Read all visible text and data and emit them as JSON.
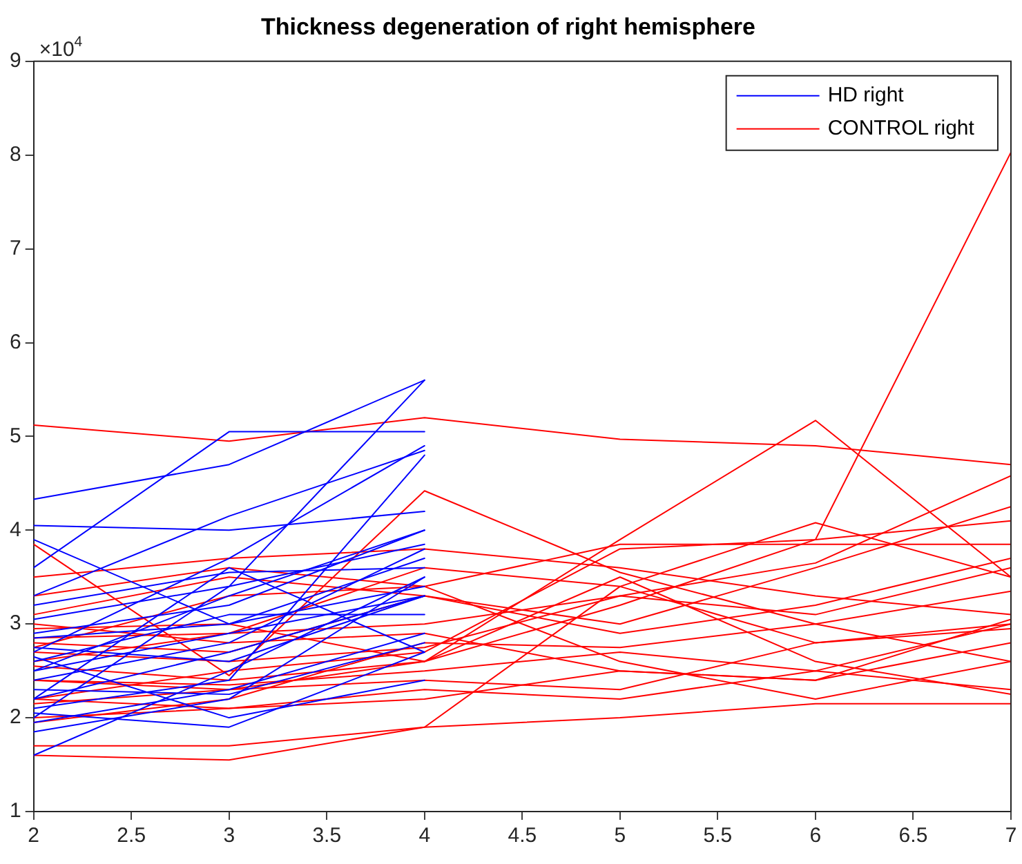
{
  "chart_data": {
    "type": "line",
    "title": "Thickness degeneration of right hemisphere",
    "annotations": [
      "×10$^{4}$"
    ],
    "x": [
      2,
      3,
      4,
      5,
      6,
      7
    ],
    "xlim": [
      2,
      7
    ],
    "xticks": [
      2,
      2.5,
      3,
      3.5,
      4,
      4.5,
      5,
      5.5,
      6,
      6.5,
      7
    ],
    "ylim": [
      1,
      9
    ],
    "yticks": [
      1,
      2,
      3,
      4,
      5,
      6,
      7,
      8,
      9
    ],
    "grid": false,
    "legend": "top right",
    "marker": "none",
    "line_style": "solid",
    "series": [
      {
        "name": "HD right",
        "color": "#0000ff",
        "x": [
          2,
          3,
          4
        ],
        "values": [
          4.33,
          4.7,
          5.6
        ]
      },
      {
        "color": "#0000ff",
        "x": [
          2,
          3,
          4
        ],
        "values": [
          4.05,
          4.0,
          4.2
        ]
      },
      {
        "color": "#0000ff",
        "x": [
          2,
          3,
          4
        ],
        "values": [
          3.6,
          5.05,
          5.05
        ]
      },
      {
        "color": "#0000ff",
        "x": [
          2,
          3,
          4
        ],
        "values": [
          3.3,
          4.15,
          4.85
        ]
      },
      {
        "color": "#0000ff",
        "x": [
          2,
          3,
          4
        ],
        "values": [
          2.0,
          3.4,
          5.6
        ]
      },
      {
        "color": "#0000ff",
        "x": [
          2,
          3,
          4
        ],
        "values": [
          2.7,
          3.7,
          4.9
        ]
      },
      {
        "color": "#0000ff",
        "x": [
          2,
          3,
          4
        ],
        "values": [
          3.2,
          3.55,
          3.6
        ]
      },
      {
        "color": "#0000ff",
        "x": [
          2,
          3,
          4
        ],
        "values": [
          2.9,
          3.2,
          4.0
        ]
      },
      {
        "color": "#0000ff",
        "x": [
          2,
          3,
          4
        ],
        "values": [
          2.5,
          3.3,
          4.0
        ]
      },
      {
        "color": "#0000ff",
        "x": [
          2,
          3,
          4
        ],
        "values": [
          2.85,
          3.0,
          3.4
        ]
      },
      {
        "color": "#0000ff",
        "x": [
          2,
          3,
          4
        ],
        "values": [
          2.4,
          2.8,
          3.8
        ]
      },
      {
        "color": "#0000ff",
        "x": [
          2,
          3,
          4
        ],
        "values": [
          2.2,
          2.7,
          3.3
        ]
      },
      {
        "color": "#0000ff",
        "x": [
          2,
          3,
          4
        ],
        "values": [
          1.6,
          2.5,
          3.5
        ]
      },
      {
        "color": "#0000ff",
        "x": [
          2,
          3,
          4
        ],
        "values": [
          2.05,
          1.9,
          2.7
        ]
      },
      {
        "color": "#0000ff",
        "x": [
          2,
          3,
          4
        ],
        "values": [
          2.6,
          3.1,
          3.1
        ]
      },
      {
        "color": "#0000ff",
        "x": [
          2,
          3,
          4
        ],
        "values": [
          2.3,
          2.25,
          2.8
        ]
      },
      {
        "color": "#0000ff",
        "x": [
          2,
          3,
          4
        ],
        "values": [
          1.85,
          2.2,
          3.5
        ]
      },
      {
        "color": "#0000ff",
        "x": [
          2,
          3,
          4
        ],
        "values": [
          2.75,
          2.6,
          3.3
        ]
      },
      {
        "color": "#0000ff",
        "x": [
          2,
          3,
          4
        ],
        "values": [
          3.9,
          3.0,
          3.7
        ]
      },
      {
        "color": "#0000ff",
        "x": [
          2,
          3,
          4
        ],
        "values": [
          2.1,
          2.4,
          4.8
        ]
      },
      {
        "color": "#0000ff",
        "x": [
          2,
          3,
          4
        ],
        "values": [
          2.5,
          2.9,
          3.3
        ]
      },
      {
        "color": "#0000ff",
        "x": [
          2,
          3,
          4
        ],
        "values": [
          2.2,
          3.6,
          2.7
        ]
      },
      {
        "color": "#0000ff",
        "x": [
          2,
          3,
          4
        ],
        "values": [
          3.05,
          3.4,
          3.85
        ]
      },
      {
        "color": "#0000ff",
        "x": [
          2,
          3,
          4
        ],
        "values": [
          2.65,
          2.0,
          2.4
        ]
      },
      {
        "color": "#0000ff",
        "x": [
          2,
          3,
          4
        ],
        "values": [
          1.95,
          2.3,
          2.9
        ]
      },
      {
        "name": "CONTROL right",
        "color": "#ff0000",
        "values": [
          5.12,
          4.95,
          5.2,
          4.97,
          4.9,
          4.7
        ]
      },
      {
        "color": "#ff0000",
        "values": [
          2.95,
          3.0,
          2.6,
          3.2,
          3.9,
          8.03
        ]
      },
      {
        "color": "#ff0000",
        "values": [
          2.4,
          2.3,
          2.6,
          3.9,
          5.17,
          3.5
        ]
      },
      {
        "color": "#ff0000",
        "values": [
          3.85,
          2.45,
          4.42,
          3.55,
          3.0,
          2.6
        ]
      },
      {
        "color": "#ff0000",
        "values": [
          2.75,
          3.3,
          3.4,
          3.85,
          3.85,
          3.85
        ]
      },
      {
        "color": "#ff0000",
        "values": [
          2.2,
          2.5,
          2.7,
          3.8,
          3.9,
          4.1
        ]
      },
      {
        "color": "#ff0000",
        "values": [
          2.85,
          2.9,
          3.6,
          3.4,
          4.08,
          3.5
        ]
      },
      {
        "color": "#ff0000",
        "values": [
          1.6,
          1.55,
          1.9,
          3.4,
          2.8,
          3.0
        ]
      },
      {
        "color": "#ff0000",
        "values": [
          1.7,
          1.7,
          1.9,
          2.0,
          2.15,
          2.15
        ]
      },
      {
        "color": "#ff0000",
        "values": [
          2.0,
          2.1,
          2.3,
          2.2,
          2.5,
          2.3
        ]
      },
      {
        "color": "#ff0000",
        "values": [
          3.3,
          3.6,
          3.4,
          2.6,
          2.2,
          2.6
        ]
      },
      {
        "color": "#ff0000",
        "values": [
          2.7,
          2.6,
          2.75,
          3.3,
          3.65,
          4.58
        ]
      },
      {
        "color": "#ff0000",
        "values": [
          3.1,
          3.5,
          3.3,
          3.0,
          3.6,
          4.25
        ]
      },
      {
        "color": "#ff0000",
        "values": [
          2.4,
          2.35,
          2.5,
          2.7,
          2.5,
          3.0
        ]
      },
      {
        "color": "#ff0000",
        "values": [
          3.0,
          2.8,
          2.9,
          2.5,
          2.4,
          3.05
        ]
      },
      {
        "color": "#ff0000",
        "values": [
          2.6,
          2.9,
          3.0,
          3.3,
          3.1,
          3.6
        ]
      },
      {
        "color": "#ff0000",
        "values": [
          2.2,
          2.1,
          2.2,
          2.5,
          2.4,
          2.8
        ]
      },
      {
        "color": "#ff0000",
        "values": [
          3.5,
          3.7,
          3.8,
          3.6,
          3.3,
          3.1
        ]
      },
      {
        "color": "#ff0000",
        "values": [
          2.55,
          2.4,
          2.6,
          3.5,
          2.6,
          2.25
        ]
      },
      {
        "color": "#ff0000",
        "values": [
          2.8,
          2.7,
          3.3,
          2.9,
          3.2,
          3.7
        ]
      },
      {
        "color": "#ff0000",
        "values": [
          2.15,
          2.3,
          2.4,
          2.3,
          2.8,
          2.95
        ]
      },
      {
        "color": "#ff0000",
        "values": [
          1.95,
          2.2,
          2.8,
          2.75,
          3.0,
          3.35
        ]
      }
    ]
  }
}
